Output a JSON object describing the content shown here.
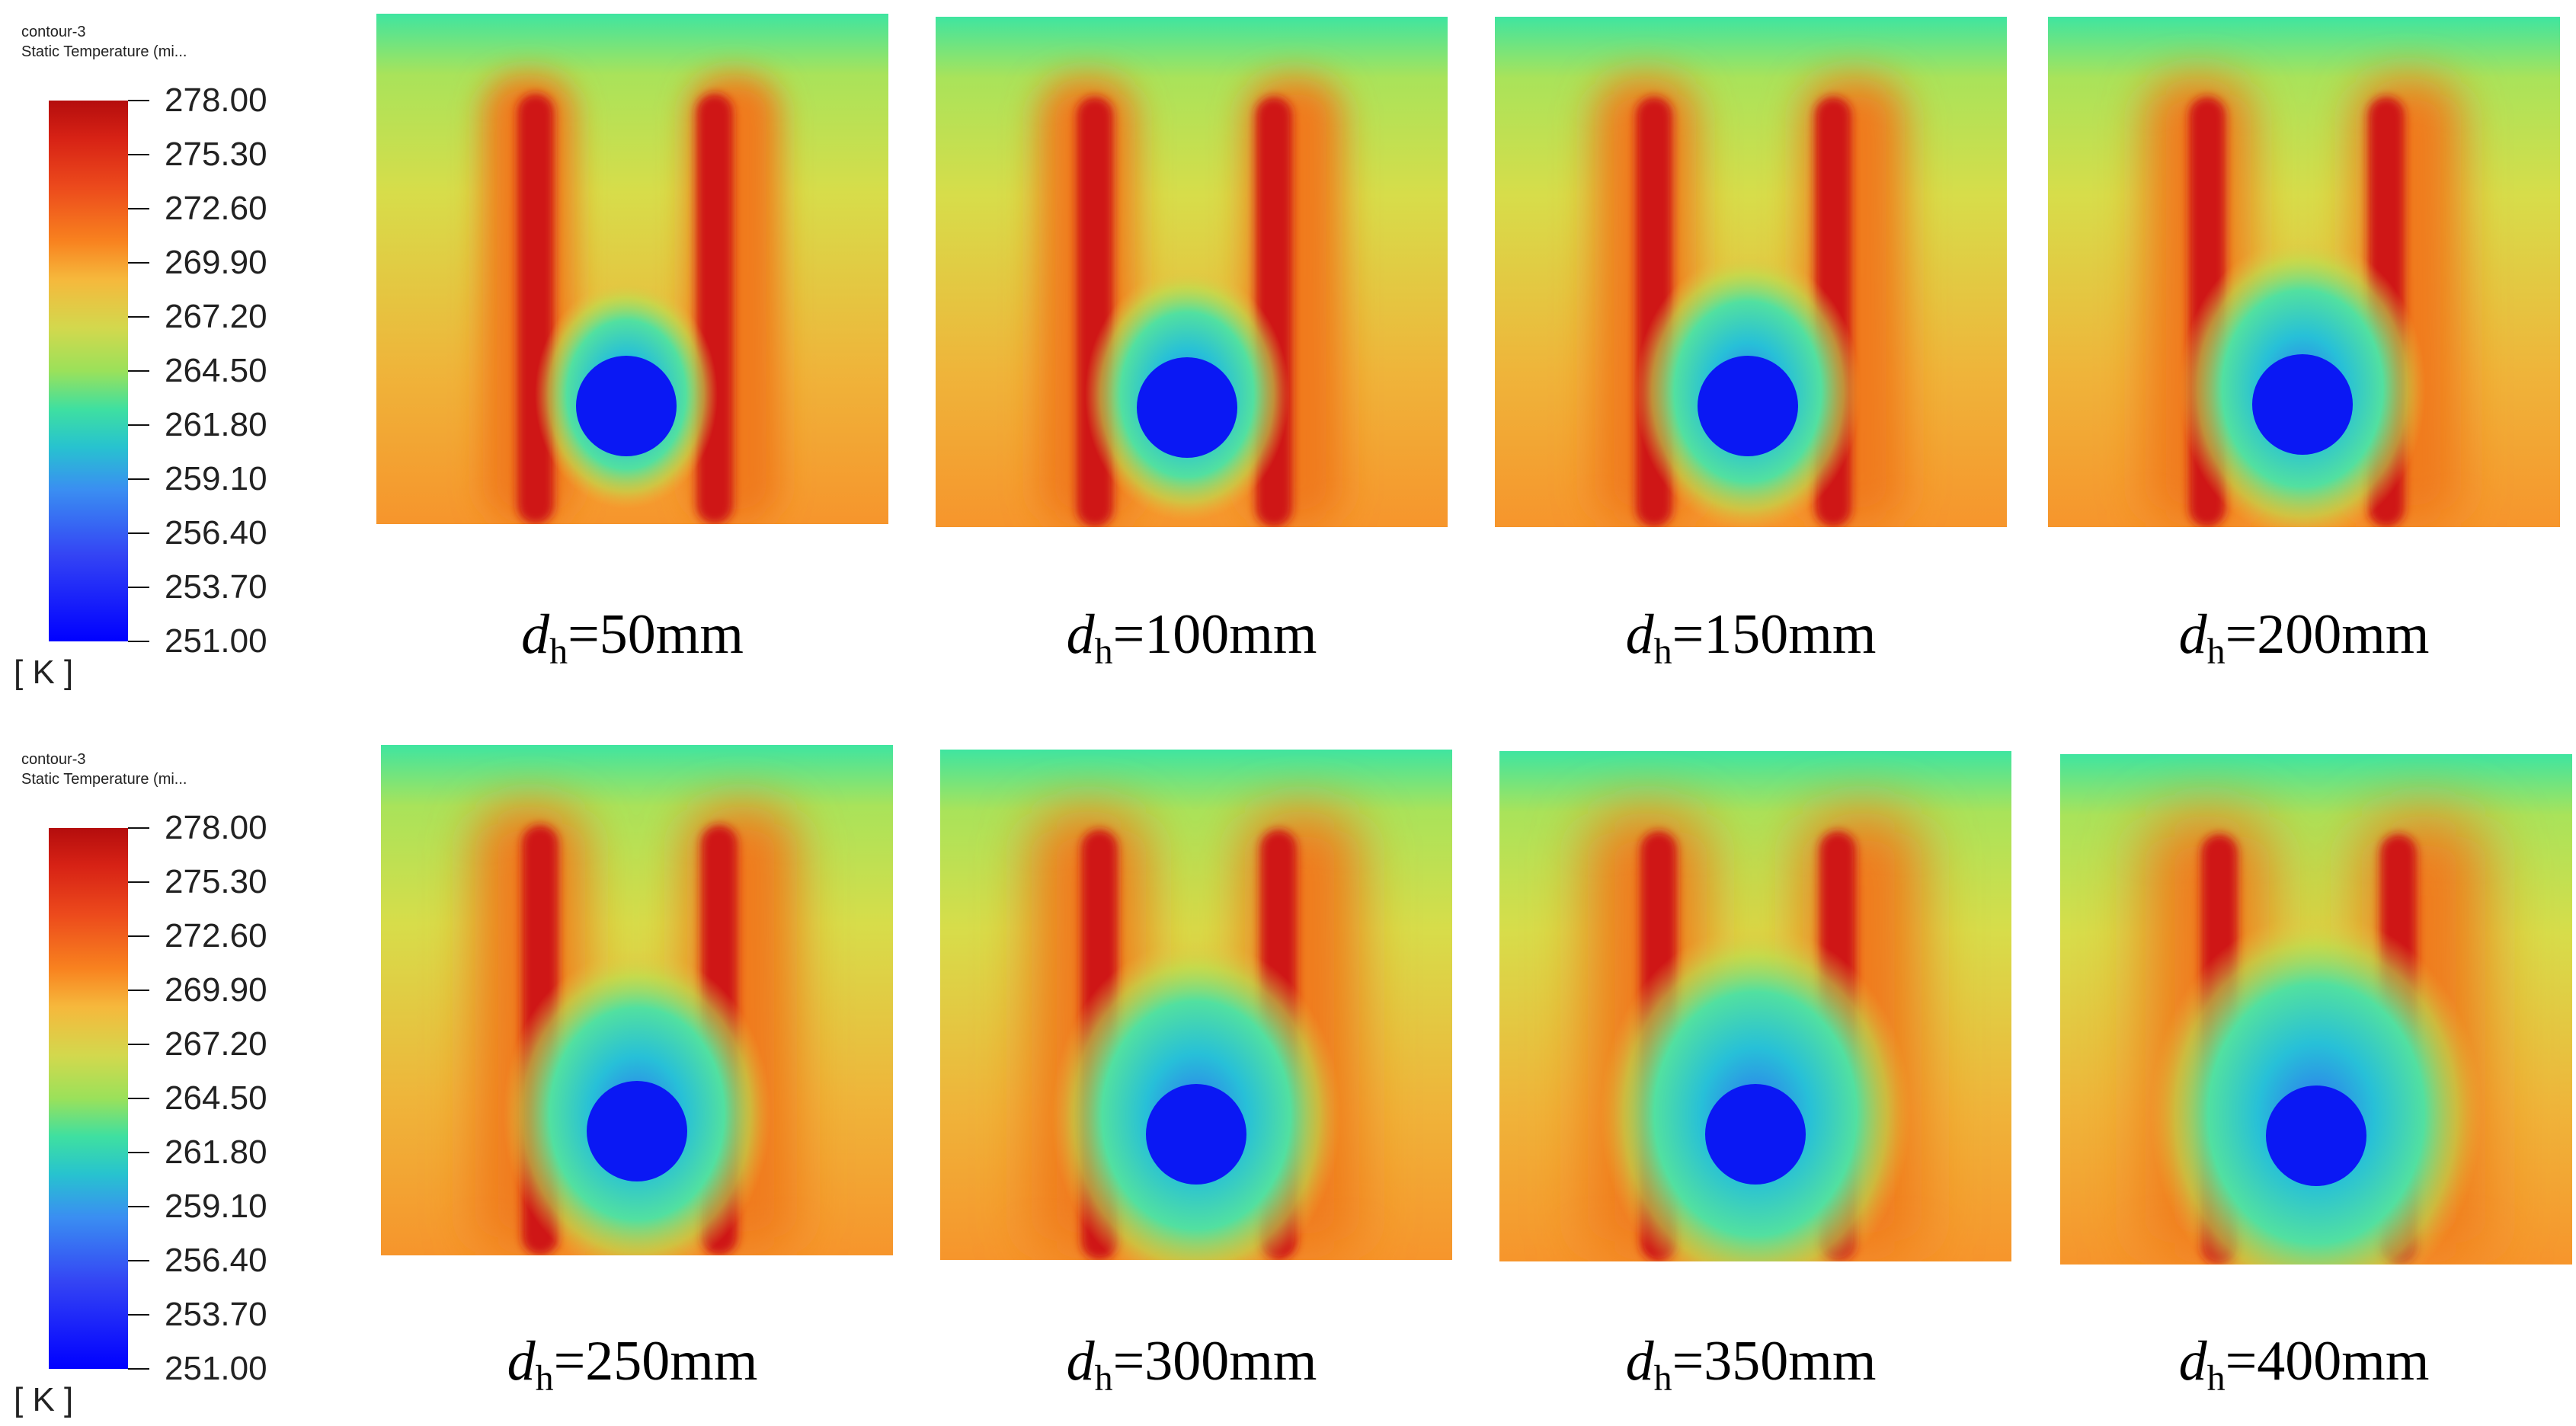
{
  "legends": [
    {
      "name": "contour-3",
      "variable": "Static Temperature (mi...",
      "unit": "[ K ]",
      "ticks": [
        "278.00",
        "275.30",
        "272.60",
        "269.90",
        "267.20",
        "264.50",
        "261.80",
        "259.10",
        "256.40",
        "253.70",
        "251.00"
      ]
    },
    {
      "name": "contour-3",
      "variable": "Static Temperature (mi...",
      "unit": "[ K ]",
      "ticks": [
        "278.00",
        "275.30",
        "272.60",
        "269.90",
        "267.20",
        "264.50",
        "261.80",
        "259.10",
        "256.40",
        "253.70",
        "251.00"
      ]
    }
  ],
  "panels": [
    {
      "symbol": "d",
      "subscript": "h",
      "value": "=50mm"
    },
    {
      "symbol": "d",
      "subscript": "h",
      "value": "=100mm"
    },
    {
      "symbol": "d",
      "subscript": "h",
      "value": "=150mm"
    },
    {
      "symbol": "d",
      "subscript": "h",
      "value": "=200mm"
    },
    {
      "symbol": "d",
      "subscript": "h",
      "value": "=250mm"
    },
    {
      "symbol": "d",
      "subscript": "h",
      "value": "=300mm"
    },
    {
      "symbol": "d",
      "subscript": "h",
      "value": "=350mm"
    },
    {
      "symbol": "d",
      "subscript": "h",
      "value": "=400mm"
    }
  ]
}
